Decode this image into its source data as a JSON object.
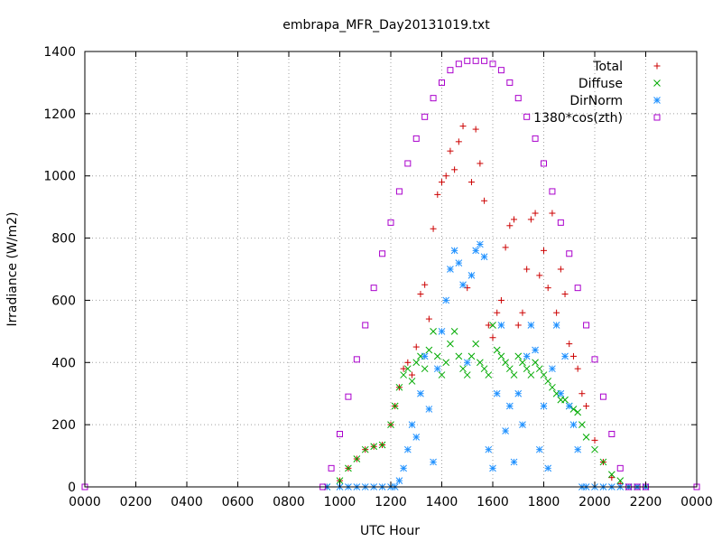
{
  "chart_data": {
    "type": "scatter",
    "title": "embrapa_MFR_Day20131019.txt",
    "xlabel": "UTC Hour",
    "ylabel": "Irradiance (W/m2)",
    "x_unit": "minutes of day",
    "xlim": [
      0,
      1440
    ],
    "ylim": [
      0,
      1400
    ],
    "grid": true,
    "legend_position": "top-right",
    "x_ticks": [
      {
        "value": 0,
        "label": "0000"
      },
      {
        "value": 120,
        "label": "0200"
      },
      {
        "value": 240,
        "label": "0400"
      },
      {
        "value": 360,
        "label": "0600"
      },
      {
        "value": 480,
        "label": "0800"
      },
      {
        "value": 600,
        "label": "1000"
      },
      {
        "value": 720,
        "label": "1200"
      },
      {
        "value": 840,
        "label": "1400"
      },
      {
        "value": 960,
        "label": "1600"
      },
      {
        "value": 1080,
        "label": "1800"
      },
      {
        "value": 1200,
        "label": "2000"
      },
      {
        "value": 1320,
        "label": "2200"
      },
      {
        "value": 1440,
        "label": "0000"
      }
    ],
    "y_ticks": [
      {
        "value": 0,
        "label": "0"
      },
      {
        "value": 200,
        "label": "200"
      },
      {
        "value": 400,
        "label": "400"
      },
      {
        "value": 600,
        "label": "600"
      },
      {
        "value": 800,
        "label": "800"
      },
      {
        "value": 1000,
        "label": "1000"
      },
      {
        "value": 1200,
        "label": "1200"
      },
      {
        "value": 1400,
        "label": "1400"
      }
    ],
    "series": [
      {
        "name": "Total",
        "marker": "plus",
        "color": "#cc0000",
        "x": [
          570,
          600,
          620,
          640,
          660,
          680,
          700,
          720,
          730,
          740,
          750,
          760,
          770,
          780,
          790,
          800,
          810,
          820,
          830,
          840,
          850,
          860,
          870,
          880,
          890,
          900,
          910,
          920,
          930,
          940,
          950,
          960,
          970,
          980,
          990,
          1000,
          1010,
          1020,
          1030,
          1040,
          1050,
          1060,
          1070,
          1080,
          1090,
          1100,
          1110,
          1120,
          1130,
          1140,
          1150,
          1160,
          1170,
          1180,
          1200,
          1220,
          1240,
          1260,
          1280,
          1300,
          1320
        ],
        "y": [
          0,
          20,
          60,
          90,
          120,
          130,
          135,
          200,
          260,
          320,
          380,
          400,
          360,
          450,
          620,
          650,
          540,
          830,
          940,
          980,
          1000,
          1080,
          1020,
          1110,
          1160,
          640,
          980,
          1150,
          1040,
          920,
          520,
          480,
          560,
          600,
          770,
          840,
          860,
          520,
          560,
          700,
          860,
          880,
          680,
          760,
          640,
          880,
          560,
          700,
          620,
          460,
          420,
          380,
          300,
          260,
          150,
          80,
          30,
          10,
          0,
          0,
          0
        ]
      },
      {
        "name": "Diffuse",
        "marker": "x",
        "color": "#00aa00",
        "x": [
          570,
          600,
          620,
          640,
          660,
          680,
          700,
          720,
          730,
          740,
          750,
          760,
          770,
          780,
          790,
          800,
          810,
          820,
          830,
          840,
          850,
          860,
          870,
          880,
          890,
          900,
          910,
          920,
          930,
          940,
          950,
          960,
          970,
          980,
          990,
          1000,
          1010,
          1020,
          1030,
          1040,
          1050,
          1060,
          1070,
          1080,
          1090,
          1100,
          1110,
          1120,
          1130,
          1140,
          1150,
          1160,
          1170,
          1180,
          1200,
          1220,
          1240,
          1260,
          1280,
          1300,
          1320
        ],
        "y": [
          0,
          20,
          60,
          90,
          120,
          130,
          135,
          200,
          260,
          320,
          360,
          380,
          340,
          400,
          420,
          380,
          440,
          500,
          420,
          360,
          400,
          460,
          500,
          420,
          380,
          360,
          420,
          460,
          400,
          380,
          360,
          520,
          440,
          420,
          400,
          380,
          360,
          420,
          400,
          380,
          360,
          400,
          380,
          360,
          340,
          320,
          300,
          280,
          280,
          260,
          250,
          240,
          200,
          160,
          120,
          80,
          40,
          20,
          0,
          0,
          0
        ]
      },
      {
        "name": "DirNorm",
        "marker": "asterisk",
        "color": "#1e90ff",
        "x": [
          570,
          600,
          620,
          640,
          660,
          680,
          700,
          720,
          730,
          740,
          750,
          760,
          770,
          780,
          790,
          800,
          810,
          820,
          830,
          840,
          850,
          860,
          870,
          880,
          890,
          900,
          910,
          920,
          930,
          940,
          950,
          960,
          970,
          980,
          990,
          1000,
          1010,
          1020,
          1030,
          1040,
          1050,
          1060,
          1070,
          1080,
          1090,
          1100,
          1110,
          1120,
          1130,
          1140,
          1150,
          1160,
          1170,
          1180,
          1200,
          1220,
          1240,
          1260,
          1280,
          1300,
          1320
        ],
        "y": [
          0,
          0,
          0,
          0,
          0,
          0,
          0,
          0,
          0,
          20,
          60,
          120,
          200,
          160,
          300,
          420,
          250,
          80,
          380,
          500,
          600,
          700,
          760,
          720,
          650,
          400,
          680,
          760,
          780,
          740,
          120,
          60,
          300,
          520,
          180,
          260,
          80,
          300,
          200,
          420,
          520,
          440,
          120,
          260,
          60,
          380,
          520,
          300,
          420,
          260,
          200,
          120,
          0,
          0,
          0,
          0,
          0,
          0,
          0,
          0,
          0
        ]
      },
      {
        "name": "1380*cos(zth)",
        "marker": "square",
        "color": "#aa00cc",
        "x": [
          0,
          560,
          580,
          600,
          620,
          640,
          660,
          680,
          700,
          720,
          740,
          760,
          780,
          800,
          820,
          840,
          860,
          880,
          900,
          920,
          940,
          960,
          980,
          1000,
          1020,
          1040,
          1060,
          1080,
          1100,
          1120,
          1140,
          1160,
          1180,
          1200,
          1220,
          1240,
          1260,
          1280,
          1300,
          1320,
          1440
        ],
        "y": [
          0,
          0,
          60,
          170,
          290,
          410,
          520,
          640,
          750,
          850,
          950,
          1040,
          1120,
          1190,
          1250,
          1300,
          1340,
          1360,
          1370,
          1370,
          1370,
          1360,
          1340,
          1300,
          1250,
          1190,
          1120,
          1040,
          950,
          850,
          750,
          640,
          520,
          410,
          290,
          170,
          60,
          0,
          0,
          0,
          0
        ]
      }
    ]
  }
}
